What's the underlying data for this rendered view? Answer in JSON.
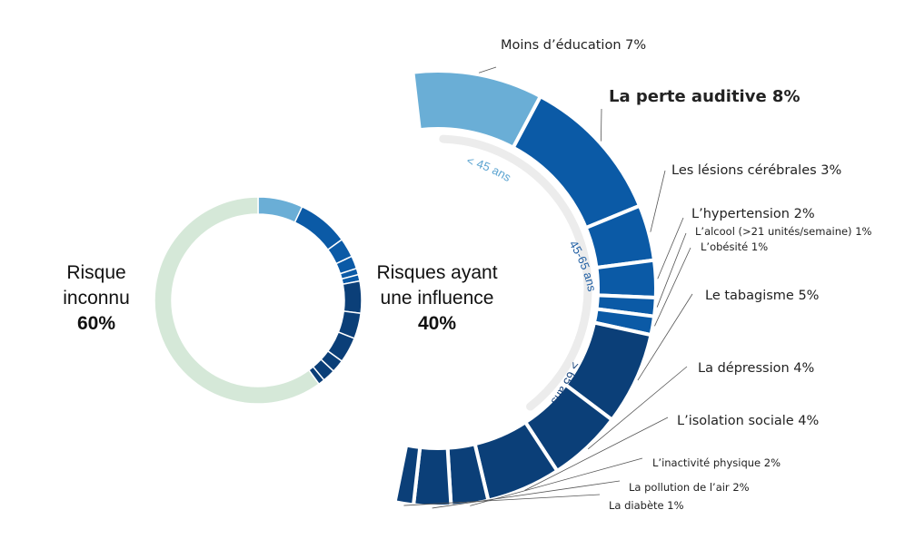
{
  "colors": {
    "under45": "#6aaed6",
    "mid": "#0b5aa6",
    "mid_dark": "#0a4f96",
    "over65": "#0b3f78",
    "unknown": "#d5e8d8",
    "track": "#ececec",
    "label_under45": "#5aa3d0",
    "label_mid": "#1f5ea3",
    "label_over65": "#123f78"
  },
  "summary": {
    "unknown_line1": "Risque",
    "unknown_line2": "inconnu",
    "unknown_pct": "60%",
    "known_line1": "Risques ayant",
    "known_line2": "une influence",
    "known_pct": "40%"
  },
  "age_groups": {
    "under45": "< 45 ans",
    "mid": "45-65 ans",
    "over65": "> 65 ans"
  },
  "chart_data": [
    {
      "type": "pie",
      "title": "",
      "slices": [
        {
          "label": "Risques ayant une influence",
          "value": 40
        },
        {
          "label": "Risque inconnu",
          "value": 60
        }
      ]
    },
    {
      "type": "pie",
      "title": "",
      "slices": [
        {
          "label": "Moins d’éducation 7%",
          "value": 7,
          "group": "< 45 ans"
        },
        {
          "label": "La perte auditive 8%",
          "value": 8,
          "group": "45-65 ans"
        },
        {
          "label": "Les lésions cérébrales 3%",
          "value": 3,
          "group": "45-65 ans"
        },
        {
          "label": "L’hypertension 2%",
          "value": 2,
          "group": "45-65 ans"
        },
        {
          "label": "L’alcool (>21 unités/semaine) 1%",
          "value": 1,
          "group": "45-65 ans"
        },
        {
          "label": "L’obésité 1%",
          "value": 1,
          "group": "45-65 ans"
        },
        {
          "label": "Le tabagisme 5%",
          "value": 5,
          "group": "> 65 ans"
        },
        {
          "label": "La dépression 4%",
          "value": 4,
          "group": "> 65 ans"
        },
        {
          "label": "L’isolation sociale 4%",
          "value": 4,
          "group": "> 65 ans"
        },
        {
          "label": "L’inactivité physique 2%",
          "value": 2,
          "group": "> 65 ans"
        },
        {
          "label": "La pollution de l’air 2%",
          "value": 2,
          "group": "> 65 ans"
        },
        {
          "label": "La diabète 1%",
          "value": 1,
          "group": "> 65 ans"
        }
      ]
    }
  ]
}
